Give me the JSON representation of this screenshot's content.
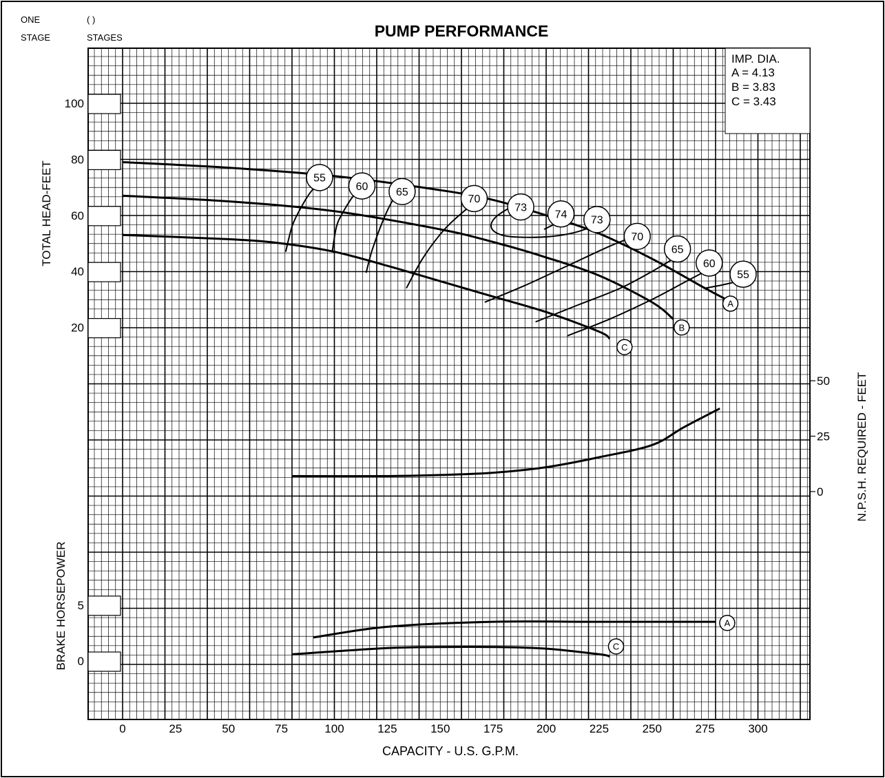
{
  "header": {
    "one_label": "ONE",
    "stage_label": "STAGE",
    "parens_label": "(    )",
    "stages_label": "STAGES"
  },
  "chart_data": {
    "type": "line",
    "title": "PUMP PERFORMANCE",
    "xlabel": "CAPACITY - U.S. G.P.M.",
    "xlim": [
      -15,
      325
    ],
    "xticks": [
      0,
      25,
      50,
      75,
      100,
      125,
      150,
      175,
      200,
      225,
      250,
      275,
      300
    ],
    "grid": true,
    "legend": {
      "position": "top-right",
      "title": "IMP. DIA.",
      "entries": [
        "A = 4.13",
        "B = 3.83",
        "C = 3.43"
      ]
    },
    "head": {
      "ylabel": "TOTAL HEAD-FEET",
      "yticks": [
        20,
        40,
        60,
        80,
        100
      ],
      "curves": [
        {
          "label": "A",
          "points": [
            [
              0,
              79
            ],
            [
              50,
              77
            ],
            [
              100,
              74
            ],
            [
              150,
              69
            ],
            [
              175,
              65.5
            ],
            [
              200,
              60
            ],
            [
              225,
              53.5
            ],
            [
              250,
              44.5
            ],
            [
              275,
              34
            ],
            [
              285,
              30
            ]
          ]
        },
        {
          "label": "B",
          "points": [
            [
              0,
              67
            ],
            [
              50,
              65
            ],
            [
              100,
              61.5
            ],
            [
              150,
              55
            ],
            [
              175,
              50.5
            ],
            [
              200,
              45
            ],
            [
              225,
              38.5
            ],
            [
              250,
              29
            ],
            [
              260,
              23
            ]
          ]
        },
        {
          "label": "C",
          "points": [
            [
              0,
              53
            ],
            [
              50,
              51.5
            ],
            [
              75,
              50
            ],
            [
              100,
              47
            ],
            [
              125,
              42
            ],
            [
              150,
              36.5
            ],
            [
              175,
              31
            ],
            [
              200,
              25.5
            ],
            [
              225,
              18.5
            ],
            [
              230,
              16
            ]
          ]
        }
      ],
      "efficiency_lines": [
        {
          "label": "55",
          "points": [
            [
              77,
              47
            ],
            [
              80,
              56
            ],
            [
              83,
              61
            ],
            [
              88,
              67.5
            ],
            [
              93,
              72
            ]
          ]
        },
        {
          "label": "60",
          "points": [
            [
              99,
              47
            ],
            [
              101,
              56
            ],
            [
              104,
              61
            ],
            [
              109,
              67
            ],
            [
              113,
              70
            ]
          ]
        },
        {
          "label": "65",
          "points": [
            [
              115,
              39.5
            ],
            [
              118,
              48
            ],
            [
              124,
              60
            ],
            [
              129,
              67
            ],
            [
              132,
              68
            ]
          ]
        },
        {
          "label": "70",
          "points": [
            [
              134,
              34
            ],
            [
              142,
              45
            ],
            [
              152,
              55
            ],
            [
              162,
              62
            ],
            [
              166,
              64
            ]
          ]
        },
        {
          "label": "74",
          "points": [
            [
              199,
              55
            ],
            [
              203,
              56.5
            ],
            [
              207,
              58
            ]
          ]
        },
        {
          "label": "70",
          "points": [
            [
              171,
              29
            ],
            [
              190,
              35
            ],
            [
              210,
              42
            ],
            [
              230,
              49
            ],
            [
              240,
              52
            ]
          ]
        },
        {
          "label": "65",
          "points": [
            [
              195,
              22
            ],
            [
              215,
              28
            ],
            [
              235,
              34
            ],
            [
              250,
              40
            ],
            [
              259,
              44
            ]
          ]
        },
        {
          "label": "60",
          "points": [
            [
              210,
              17
            ],
            [
              230,
              23
            ],
            [
              250,
              30
            ],
            [
              265,
              36
            ],
            [
              275,
              40
            ]
          ]
        },
        {
          "label": "55",
          "points": [
            [
              275,
              34
            ],
            [
              282,
              35
            ],
            [
              288,
              36
            ]
          ]
        }
      ],
      "efficiency_island": {
        "label": "73",
        "points": [
          [
            187,
            64
          ],
          [
            175,
            56
          ],
          [
            185,
            52
          ],
          [
            210,
            55
          ],
          [
            226,
            58
          ],
          [
            210,
            55
          ],
          [
            185,
            52
          ],
          [
            175,
            56
          ],
          [
            187,
            64
          ]
        ]
      },
      "efficiency_island_label_2": "73"
    },
    "npsh": {
      "ylabel": "N.P.S.H. REQUIRED - FEET",
      "yticks": [
        0,
        25,
        50
      ],
      "curve": {
        "points": [
          [
            80,
            7
          ],
          [
            125,
            7
          ],
          [
            150,
            7.5
          ],
          [
            175,
            8.5
          ],
          [
            200,
            11
          ],
          [
            225,
            15.5
          ],
          [
            250,
            21
          ],
          [
            265,
            29
          ],
          [
            282,
            37.5
          ]
        ]
      }
    },
    "bhp": {
      "ylabel": "BRAKE HORSEPOWER",
      "yticks": [
        0,
        5
      ],
      "curves": [
        {
          "label": "A",
          "points": [
            [
              90,
              2.1
            ],
            [
              125,
              3.05
            ],
            [
              175,
              3.5
            ],
            [
              225,
              3.5
            ],
            [
              280,
              3.5
            ]
          ]
        },
        {
          "label": "C",
          "points": [
            [
              80,
              0.6
            ],
            [
              125,
              1.15
            ],
            [
              150,
              1.25
            ],
            [
              175,
              1.25
            ],
            [
              200,
              1.1
            ],
            [
              225,
              0.6
            ],
            [
              230,
              0.4
            ]
          ]
        }
      ]
    }
  }
}
